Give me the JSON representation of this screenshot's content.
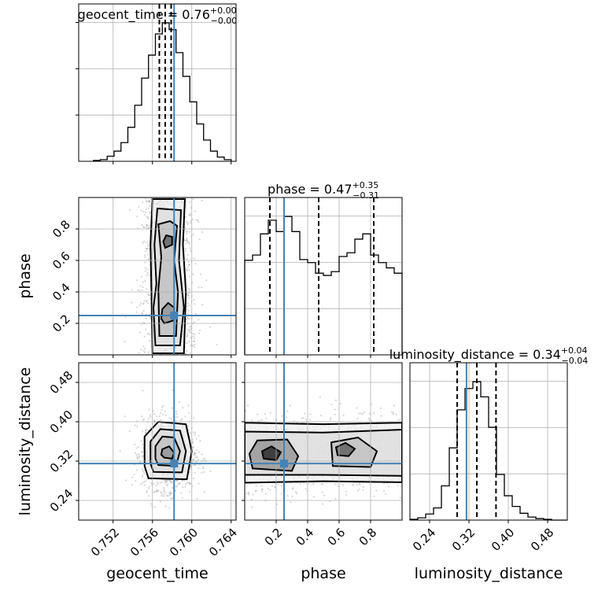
{
  "chart_data": {
    "type": "corner",
    "parameters": [
      {
        "name": "geocent_time",
        "axis_label": "geocent_time",
        "title_prefix": "geocent_time = ",
        "median": "0.76",
        "err_plus": "+0.00",
        "err_minus": "−0.00",
        "range": [
          0.7485,
          0.7645
        ],
        "ticks": [
          0.752,
          0.756,
          0.76,
          0.764
        ],
        "tick_labels": [
          "0.752",
          "0.756",
          "0.760",
          "0.764"
        ],
        "truth": 0.7582,
        "quantiles": [
          0.7567,
          0.7573,
          0.7579
        ],
        "hist": {
          "edges": [
            0.75,
            0.7507,
            0.7514,
            0.7521,
            0.7528,
            0.7535,
            0.7542,
            0.7549,
            0.7556,
            0.7563,
            0.757,
            0.7577,
            0.7584,
            0.7591,
            0.7598,
            0.7605,
            0.7612,
            0.7619,
            0.7626,
            0.7633,
            0.764
          ],
          "counts": [
            1,
            2,
            6,
            12,
            22,
            40,
            66,
            98,
            125,
            150,
            163,
            155,
            128,
            100,
            70,
            44,
            25,
            12,
            5,
            2
          ]
        }
      },
      {
        "name": "phase",
        "axis_label": "phase",
        "title_prefix": "phase = ",
        "median": "0.47",
        "err_plus": "+0.35",
        "err_minus": "−0.31",
        "range": [
          0.0,
          1.0
        ],
        "ticks": [
          0.2,
          0.4,
          0.6,
          0.8
        ],
        "tick_labels": [
          "0.2",
          "0.4",
          "0.6",
          "0.8"
        ],
        "truth": 0.25,
        "quantiles": [
          0.16,
          0.47,
          0.82
        ],
        "hist": {
          "edges": [
            0.0,
            0.05,
            0.1,
            0.15,
            0.2,
            0.25,
            0.3,
            0.35,
            0.4,
            0.45,
            0.5,
            0.55,
            0.6,
            0.65,
            0.7,
            0.75,
            0.8,
            0.85,
            0.9,
            0.95,
            1.0
          ],
          "counts": [
            125,
            132,
            160,
            178,
            163,
            183,
            163,
            126,
            122,
            108,
            105,
            110,
            130,
            135,
            153,
            160,
            132,
            122,
            115,
            108
          ]
        }
      },
      {
        "name": "luminosity_distance",
        "axis_label": "luminosity_distance",
        "title_prefix": "luminosity_distance = ",
        "median": "0.34",
        "err_plus": "+0.04",
        "err_minus": "−0.04",
        "range": [
          0.2,
          0.52
        ],
        "ticks": [
          0.24,
          0.32,
          0.4,
          0.48
        ],
        "tick_labels": [
          "0.24",
          "0.32",
          "0.40",
          "0.48"
        ],
        "truth": 0.315,
        "quantiles": [
          0.296,
          0.336,
          0.375
        ],
        "hist": {
          "edges": [
            0.2,
            0.216,
            0.232,
            0.248,
            0.264,
            0.28,
            0.296,
            0.312,
            0.328,
            0.344,
            0.36,
            0.376,
            0.392,
            0.408,
            0.424,
            0.44,
            0.456,
            0.472,
            0.488,
            0.504,
            0.52
          ],
          "counts": [
            1,
            3,
            8,
            16,
            45,
            95,
            145,
            173,
            182,
            162,
            122,
            60,
            32,
            18,
            9,
            4,
            2,
            1,
            0,
            0
          ]
        }
      }
    ],
    "joint": [
      {
        "x": "geocent_time",
        "y": "phase",
        "contours": [
          [
            [
              0.7573,
              0.68
            ],
            [
              0.758,
              0.7
            ],
            [
              0.758,
              0.75
            ],
            [
              0.7574,
              0.76
            ],
            [
              0.7571,
              0.72
            ]
          ],
          [
            [
              0.7572,
              0.2
            ],
            [
              0.7582,
              0.22
            ],
            [
              0.7582,
              0.3
            ],
            [
              0.7576,
              0.33
            ],
            [
              0.757,
              0.29
            ],
            [
              0.7569,
              0.23
            ]
          ],
          [
            [
              0.7567,
              0.12
            ],
            [
              0.7584,
              0.12
            ],
            [
              0.7586,
              0.4
            ],
            [
              0.7582,
              0.6
            ],
            [
              0.7585,
              0.82
            ],
            [
              0.7578,
              0.85
            ],
            [
              0.7566,
              0.83
            ],
            [
              0.7569,
              0.62
            ],
            [
              0.7566,
              0.42
            ]
          ],
          [
            [
              0.7563,
              0.06
            ],
            [
              0.7588,
              0.06
            ],
            [
              0.7592,
              0.3
            ],
            [
              0.7587,
              0.6
            ],
            [
              0.7589,
              0.92
            ],
            [
              0.7565,
              0.93
            ],
            [
              0.7562,
              0.7
            ],
            [
              0.7564,
              0.45
            ],
            [
              0.7561,
              0.3
            ]
          ],
          [
            [
              0.756,
              0.01
            ],
            [
              0.7592,
              0.01
            ],
            [
              0.7594,
              0.4
            ],
            [
              0.7591,
              0.7
            ],
            [
              0.7593,
              0.99
            ],
            [
              0.756,
              0.99
            ],
            [
              0.7558,
              0.7
            ],
            [
              0.7559,
              0.4
            ]
          ]
        ]
      },
      {
        "x": "geocent_time",
        "y": "luminosity_distance",
        "contours": [
          [
            [
              0.7572,
              0.327
            ],
            [
              0.758,
              0.325
            ],
            [
              0.7582,
              0.337
            ],
            [
              0.7577,
              0.35
            ],
            [
              0.757,
              0.344
            ],
            [
              0.7569,
              0.333
            ]
          ],
          [
            [
              0.7566,
              0.312
            ],
            [
              0.7584,
              0.31
            ],
            [
              0.7588,
              0.34
            ],
            [
              0.7582,
              0.368
            ],
            [
              0.757,
              0.37
            ],
            [
              0.7563,
              0.35
            ],
            [
              0.7563,
              0.325
            ]
          ],
          [
            [
              0.7561,
              0.298
            ],
            [
              0.759,
              0.297
            ],
            [
              0.7594,
              0.34
            ],
            [
              0.7588,
              0.382
            ],
            [
              0.7568,
              0.385
            ],
            [
              0.7558,
              0.36
            ],
            [
              0.7558,
              0.315
            ]
          ],
          [
            [
              0.7556,
              0.285
            ],
            [
              0.7595,
              0.283
            ],
            [
              0.76,
              0.34
            ],
            [
              0.7594,
              0.395
            ],
            [
              0.7566,
              0.4
            ],
            [
              0.7552,
              0.37
            ],
            [
              0.7552,
              0.31
            ]
          ]
        ]
      },
      {
        "x": "phase",
        "y": "luminosity_distance",
        "contours": [
          [
            [
              0.12,
              0.325
            ],
            [
              0.2,
              0.322
            ],
            [
              0.23,
              0.338
            ],
            [
              0.17,
              0.35
            ],
            [
              0.11,
              0.34
            ]
          ],
          [
            [
              0.59,
              0.332
            ],
            [
              0.66,
              0.33
            ],
            [
              0.7,
              0.345
            ],
            [
              0.64,
              0.357
            ],
            [
              0.58,
              0.348
            ]
          ],
          [
            [
              0.05,
              0.305
            ],
            [
              0.3,
              0.3
            ],
            [
              0.34,
              0.33
            ],
            [
              0.27,
              0.364
            ],
            [
              0.08,
              0.362
            ],
            [
              0.03,
              0.335
            ]
          ],
          [
            [
              0.56,
              0.31
            ],
            [
              0.8,
              0.308
            ],
            [
              0.84,
              0.34
            ],
            [
              0.72,
              0.368
            ],
            [
              0.55,
              0.358
            ]
          ],
          [
            [
              0.0,
              0.292
            ],
            [
              0.5,
              0.292
            ],
            [
              1.0,
              0.29
            ],
            [
              1.0,
              0.384
            ],
            [
              0.5,
              0.378
            ],
            [
              0.0,
              0.38
            ]
          ],
          [
            [
              0.0,
              0.276
            ],
            [
              0.5,
              0.279
            ],
            [
              1.0,
              0.277
            ],
            [
              1.0,
              0.398
            ],
            [
              0.5,
              0.395
            ],
            [
              0.0,
              0.398
            ]
          ]
        ]
      }
    ],
    "colors": {
      "truth": "#4682b4",
      "line": "#000000",
      "grid": "#b0b0b0",
      "density_dark": "#141414",
      "density_light": "#e8e8e8"
    },
    "grid": true
  }
}
